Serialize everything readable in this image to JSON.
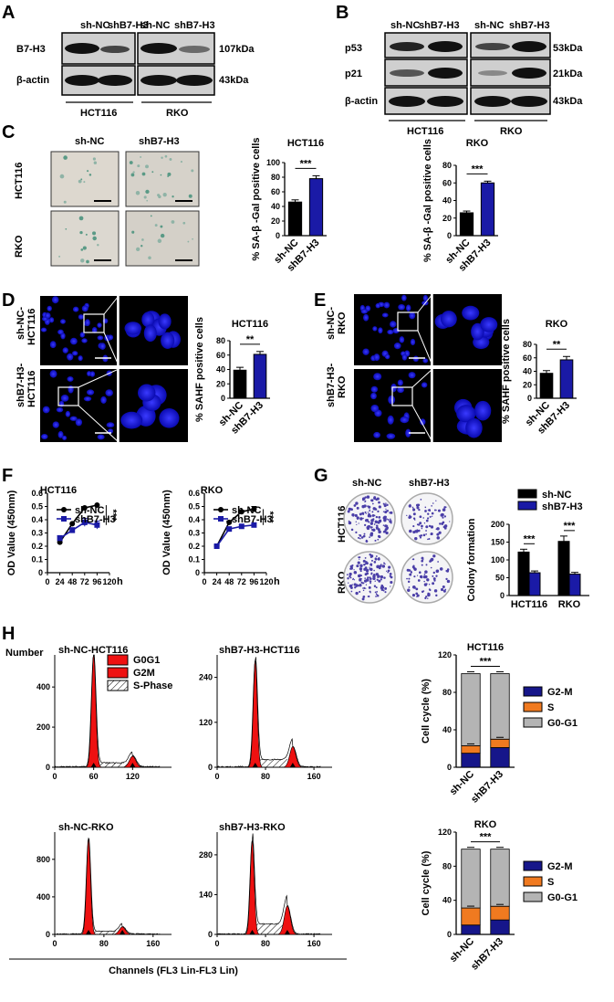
{
  "panels": {
    "A": "A",
    "B": "B",
    "C": "C",
    "D": "D",
    "E": "E",
    "F": "F",
    "G": "G",
    "H": "H"
  },
  "blotA": {
    "lanes": [
      "sh-NC",
      "shB7-H3",
      "sh-NC",
      "shB7-H3"
    ],
    "rows": [
      {
        "name": "B7-H3",
        "kda": "107kDa"
      },
      {
        "name": "β-actin",
        "kda": "43kDa"
      }
    ],
    "groups": [
      "HCT116",
      "RKO"
    ]
  },
  "blotB": {
    "lanes": [
      "sh-NC",
      "shB7-H3",
      "sh-NC",
      "shB7-H3"
    ],
    "rows": [
      {
        "name": "p53",
        "kda": "53kDa"
      },
      {
        "name": "p21",
        "kda": "21kDa"
      },
      {
        "name": "β-actin",
        "kda": "43kDa"
      }
    ],
    "groups": [
      "HCT116",
      "RKO"
    ]
  },
  "micC": {
    "cols": [
      "sh-NC",
      "shB7-H3"
    ],
    "rows": [
      "HCT116",
      "RKO"
    ]
  },
  "micD": {
    "rows": [
      "sh-NC-\nHCT116",
      "shB7-H3-\nHCT116"
    ]
  },
  "micE": {
    "rows": [
      "sh-NC-\nRKO",
      "shB7-H3-\nRKO"
    ]
  },
  "micG": {
    "cols": [
      "sh-NC",
      "shB7-H3"
    ],
    "rows": [
      "HCT116",
      "RKO"
    ]
  },
  "sig": {
    "three": "***",
    "two": "**"
  },
  "chart_data": [
    {
      "id": "C1",
      "type": "bar",
      "title": "HCT116",
      "ylabel": "% SA-β -Gal positive cells",
      "categories": [
        "sh-NC",
        "shB7-H3"
      ],
      "values": [
        46,
        78
      ],
      "errors": [
        3,
        4
      ],
      "ylim": [
        0,
        100
      ],
      "yticks": [
        0,
        20,
        40,
        60,
        80,
        100
      ],
      "colors": [
        "#000000",
        "#1a1aa6"
      ],
      "significance": "***"
    },
    {
      "id": "C2",
      "type": "bar",
      "title": "RKO",
      "ylabel": "% SA-β -Gal positive cells",
      "categories": [
        "sh-NC",
        "shB7-H3"
      ],
      "values": [
        26,
        60
      ],
      "errors": [
        2,
        2
      ],
      "ylim": [
        0,
        80
      ],
      "yticks": [
        0,
        20,
        40,
        60,
        80
      ],
      "colors": [
        "#000000",
        "#1a1aa6"
      ],
      "significance": "***"
    },
    {
      "id": "D",
      "type": "bar",
      "title": "HCT116",
      "ylabel": "% SAHF positive cells",
      "categories": [
        "sh-NC",
        "shB7-H3"
      ],
      "values": [
        39,
        61
      ],
      "errors": [
        4,
        4
      ],
      "ylim": [
        0,
        80
      ],
      "yticks": [
        0,
        20,
        40,
        60,
        80
      ],
      "colors": [
        "#000000",
        "#1a1aa6"
      ],
      "significance": "**"
    },
    {
      "id": "E",
      "type": "bar",
      "title": "RKO",
      "ylabel": "% SAHF positive cells",
      "categories": [
        "sh-NC",
        "shB7-H3"
      ],
      "values": [
        37,
        57
      ],
      "errors": [
        4,
        5
      ],
      "ylim": [
        0,
        80
      ],
      "yticks": [
        0,
        20,
        40,
        60,
        80
      ],
      "colors": [
        "#000000",
        "#1a1aa6"
      ],
      "significance": "**"
    },
    {
      "id": "F1",
      "type": "line",
      "title": "HCT116",
      "xlabel": "h",
      "ylabel": "OD Value (450nm)",
      "x": [
        24,
        48,
        72,
        96
      ],
      "xticks": [
        0,
        24,
        48,
        72,
        96,
        120
      ],
      "ylim": [
        0,
        0.6
      ],
      "yticks": [
        0,
        0.1,
        0.2,
        0.3,
        0.4,
        0.5,
        0.6
      ],
      "series": [
        {
          "name": "sh-NC",
          "values": [
            0.23,
            0.37,
            0.49,
            0.51
          ],
          "color": "#000000",
          "marker": "circle"
        },
        {
          "name": "shB7-H3",
          "values": [
            0.26,
            0.32,
            0.38,
            0.36
          ],
          "errors": [
            0.02,
            0.02,
            0.03,
            0.03
          ],
          "color": "#1a1aa6",
          "marker": "square"
        }
      ],
      "significance": "***"
    },
    {
      "id": "F2",
      "type": "line",
      "title": "RKO",
      "xlabel": "h",
      "ylabel": "OD Value (450nm)",
      "x": [
        24,
        48,
        72,
        96
      ],
      "xticks": [
        0,
        24,
        48,
        72,
        96,
        120
      ],
      "ylim": [
        0,
        0.6
      ],
      "yticks": [
        0,
        0.1,
        0.2,
        0.3,
        0.4,
        0.5,
        0.6
      ],
      "series": [
        {
          "name": "sh-NC",
          "values": [
            0.2,
            0.38,
            0.46,
            0.48
          ],
          "errors": [
            0.01,
            0.01,
            0.01,
            0.02
          ],
          "color": "#000000",
          "marker": "circle"
        },
        {
          "name": "shB7-H3",
          "values": [
            0.2,
            0.33,
            0.35,
            0.36
          ],
          "color": "#1a1aa6",
          "marker": "square"
        }
      ],
      "significance": "***"
    },
    {
      "id": "G",
      "type": "bar",
      "ylabel": "Colony formation",
      "categories": [
        "HCT116",
        "RKO"
      ],
      "series": [
        {
          "name": "sh-NC",
          "values": [
            122,
            152
          ],
          "errors": [
            8,
            15
          ],
          "color": "#000000"
        },
        {
          "name": "shB7-H3",
          "values": [
            64,
            60
          ],
          "errors": [
            5,
            5
          ],
          "color": "#1a1aa6"
        }
      ],
      "ylim": [
        0,
        200
      ],
      "yticks": [
        0,
        50,
        100,
        150,
        200
      ],
      "significance": [
        "***",
        "***"
      ]
    },
    {
      "id": "H1",
      "type": "bar",
      "stacked": true,
      "title": "HCT116",
      "ylabel": "Cell cycle (%)",
      "categories": [
        "sh-NC",
        "shB7-H3"
      ],
      "series": [
        {
          "name": "G2-M",
          "values": [
            15,
            21
          ],
          "color": "#16168a"
        },
        {
          "name": "S",
          "values": [
            8,
            9
          ],
          "color": "#f07a20"
        },
        {
          "name": "G0-G1",
          "values": [
            77,
            70
          ],
          "color": "#b4b4b4"
        }
      ],
      "ylim": [
        0,
        120
      ],
      "yticks": [
        0,
        40,
        80,
        120
      ],
      "significance": "***"
    },
    {
      "id": "H2",
      "type": "bar",
      "stacked": true,
      "title": "RKO",
      "ylabel": "Cell cycle (%)",
      "categories": [
        "sh-NC",
        "shB7-H3"
      ],
      "series": [
        {
          "name": "G2-M",
          "values": [
            11,
            17
          ],
          "color": "#16168a"
        },
        {
          "name": "S",
          "values": [
            20,
            16
          ],
          "color": "#f07a20"
        },
        {
          "name": "G0-G1",
          "values": [
            69,
            67
          ],
          "color": "#b4b4b4"
        }
      ],
      "ylim": [
        0,
        120
      ],
      "yticks": [
        0,
        40,
        80,
        120
      ],
      "significance": "***"
    }
  ],
  "flow": {
    "ylabel": "Number",
    "xlabel": "Channels (FL3 Lin-FL3 Lin)",
    "legend": [
      "G0G1",
      "G2M",
      "S-Phase"
    ],
    "plots": [
      {
        "title": "sh-NC-HCT116",
        "yticks": [
          0,
          200,
          400
        ],
        "xticks": [
          0,
          60,
          120
        ],
        "ymax": 560,
        "xmax": 180,
        "g1": 60,
        "g2": 120,
        "h1": 560,
        "h2": 55
      },
      {
        "title": "shB7-H3-HCT116",
        "yticks": [
          0,
          120,
          240
        ],
        "xticks": [
          0,
          80,
          160
        ],
        "ymax": 300,
        "xmax": 190,
        "g1": 63,
        "g2": 125,
        "h1": 285,
        "h2": 55
      },
      {
        "title": "sh-NC-RKO",
        "yticks": [
          0,
          400,
          800
        ],
        "xticks": [
          0,
          80,
          160
        ],
        "ymax": 1090,
        "xmax": 190,
        "g1": 55,
        "g2": 110,
        "h1": 1020,
        "h2": 80
      },
      {
        "title": "shB7-H3-RKO",
        "yticks": [
          0,
          140,
          280
        ],
        "xticks": [
          0,
          80,
          160
        ],
        "ymax": 360,
        "xmax": 190,
        "g1": 58,
        "g2": 116,
        "h1": 330,
        "h2": 100
      }
    ]
  }
}
